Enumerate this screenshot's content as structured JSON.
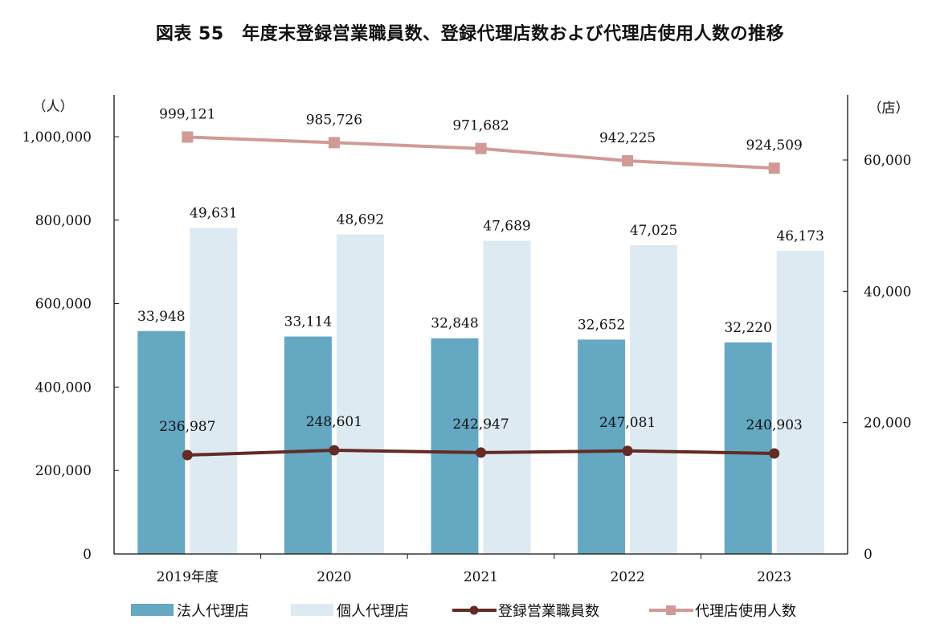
{
  "chart_data": {
    "type": "bar",
    "title": "図表 55　年度末登録営業職員数、登録代理店数および代理店使用人数の推移",
    "categories": [
      "2019年度",
      "2020",
      "2021",
      "2022",
      "2023"
    ],
    "y_left": {
      "unit_label": "（人）",
      "range": [
        0,
        1100000
      ],
      "ticks": [
        0,
        200000,
        400000,
        600000,
        800000,
        1000000
      ],
      "tick_labels": [
        "0",
        "200,000",
        "400,000",
        "600,000",
        "800,000",
        "1,000,000"
      ]
    },
    "y_right": {
      "unit_label": "（店）",
      "range": [
        0,
        67400
      ],
      "ticks": [
        0,
        20000,
        40000,
        60000
      ],
      "tick_labels": [
        "0",
        "20,000",
        "40,000",
        "60,000"
      ]
    },
    "grid": false,
    "legend_position": "bottom",
    "series": [
      {
        "name": "法人代理店",
        "kind": "bar",
        "axis": "right",
        "color": "#64a8c2",
        "values": [
          33948,
          33114,
          32848,
          32652,
          32220
        ],
        "labels": [
          "33,948",
          "33,114",
          "32,848",
          "32,652",
          "32,220"
        ]
      },
      {
        "name": "個人代理店",
        "kind": "bar",
        "axis": "right",
        "color": "#ddeaf1",
        "values": [
          49631,
          48692,
          47689,
          47025,
          46173
        ],
        "labels": [
          "49,631",
          "48,692",
          "47,689",
          "47,025",
          "46,173"
        ]
      },
      {
        "name": "登録営業職員数",
        "kind": "line",
        "axis": "left",
        "color": "#632a26",
        "marker": "circle",
        "values": [
          236987,
          248601,
          242947,
          247081,
          240903
        ],
        "labels": [
          "236,987",
          "248,601",
          "242,947",
          "247,081",
          "240,903"
        ]
      },
      {
        "name": "代理店使用人数",
        "kind": "line",
        "axis": "left",
        "color": "#d19a97",
        "marker": "square",
        "values": [
          999121,
          985726,
          971682,
          942225,
          924509
        ],
        "labels": [
          "999,121",
          "985,726",
          "971,682",
          "942,225",
          "924,509"
        ]
      }
    ]
  }
}
